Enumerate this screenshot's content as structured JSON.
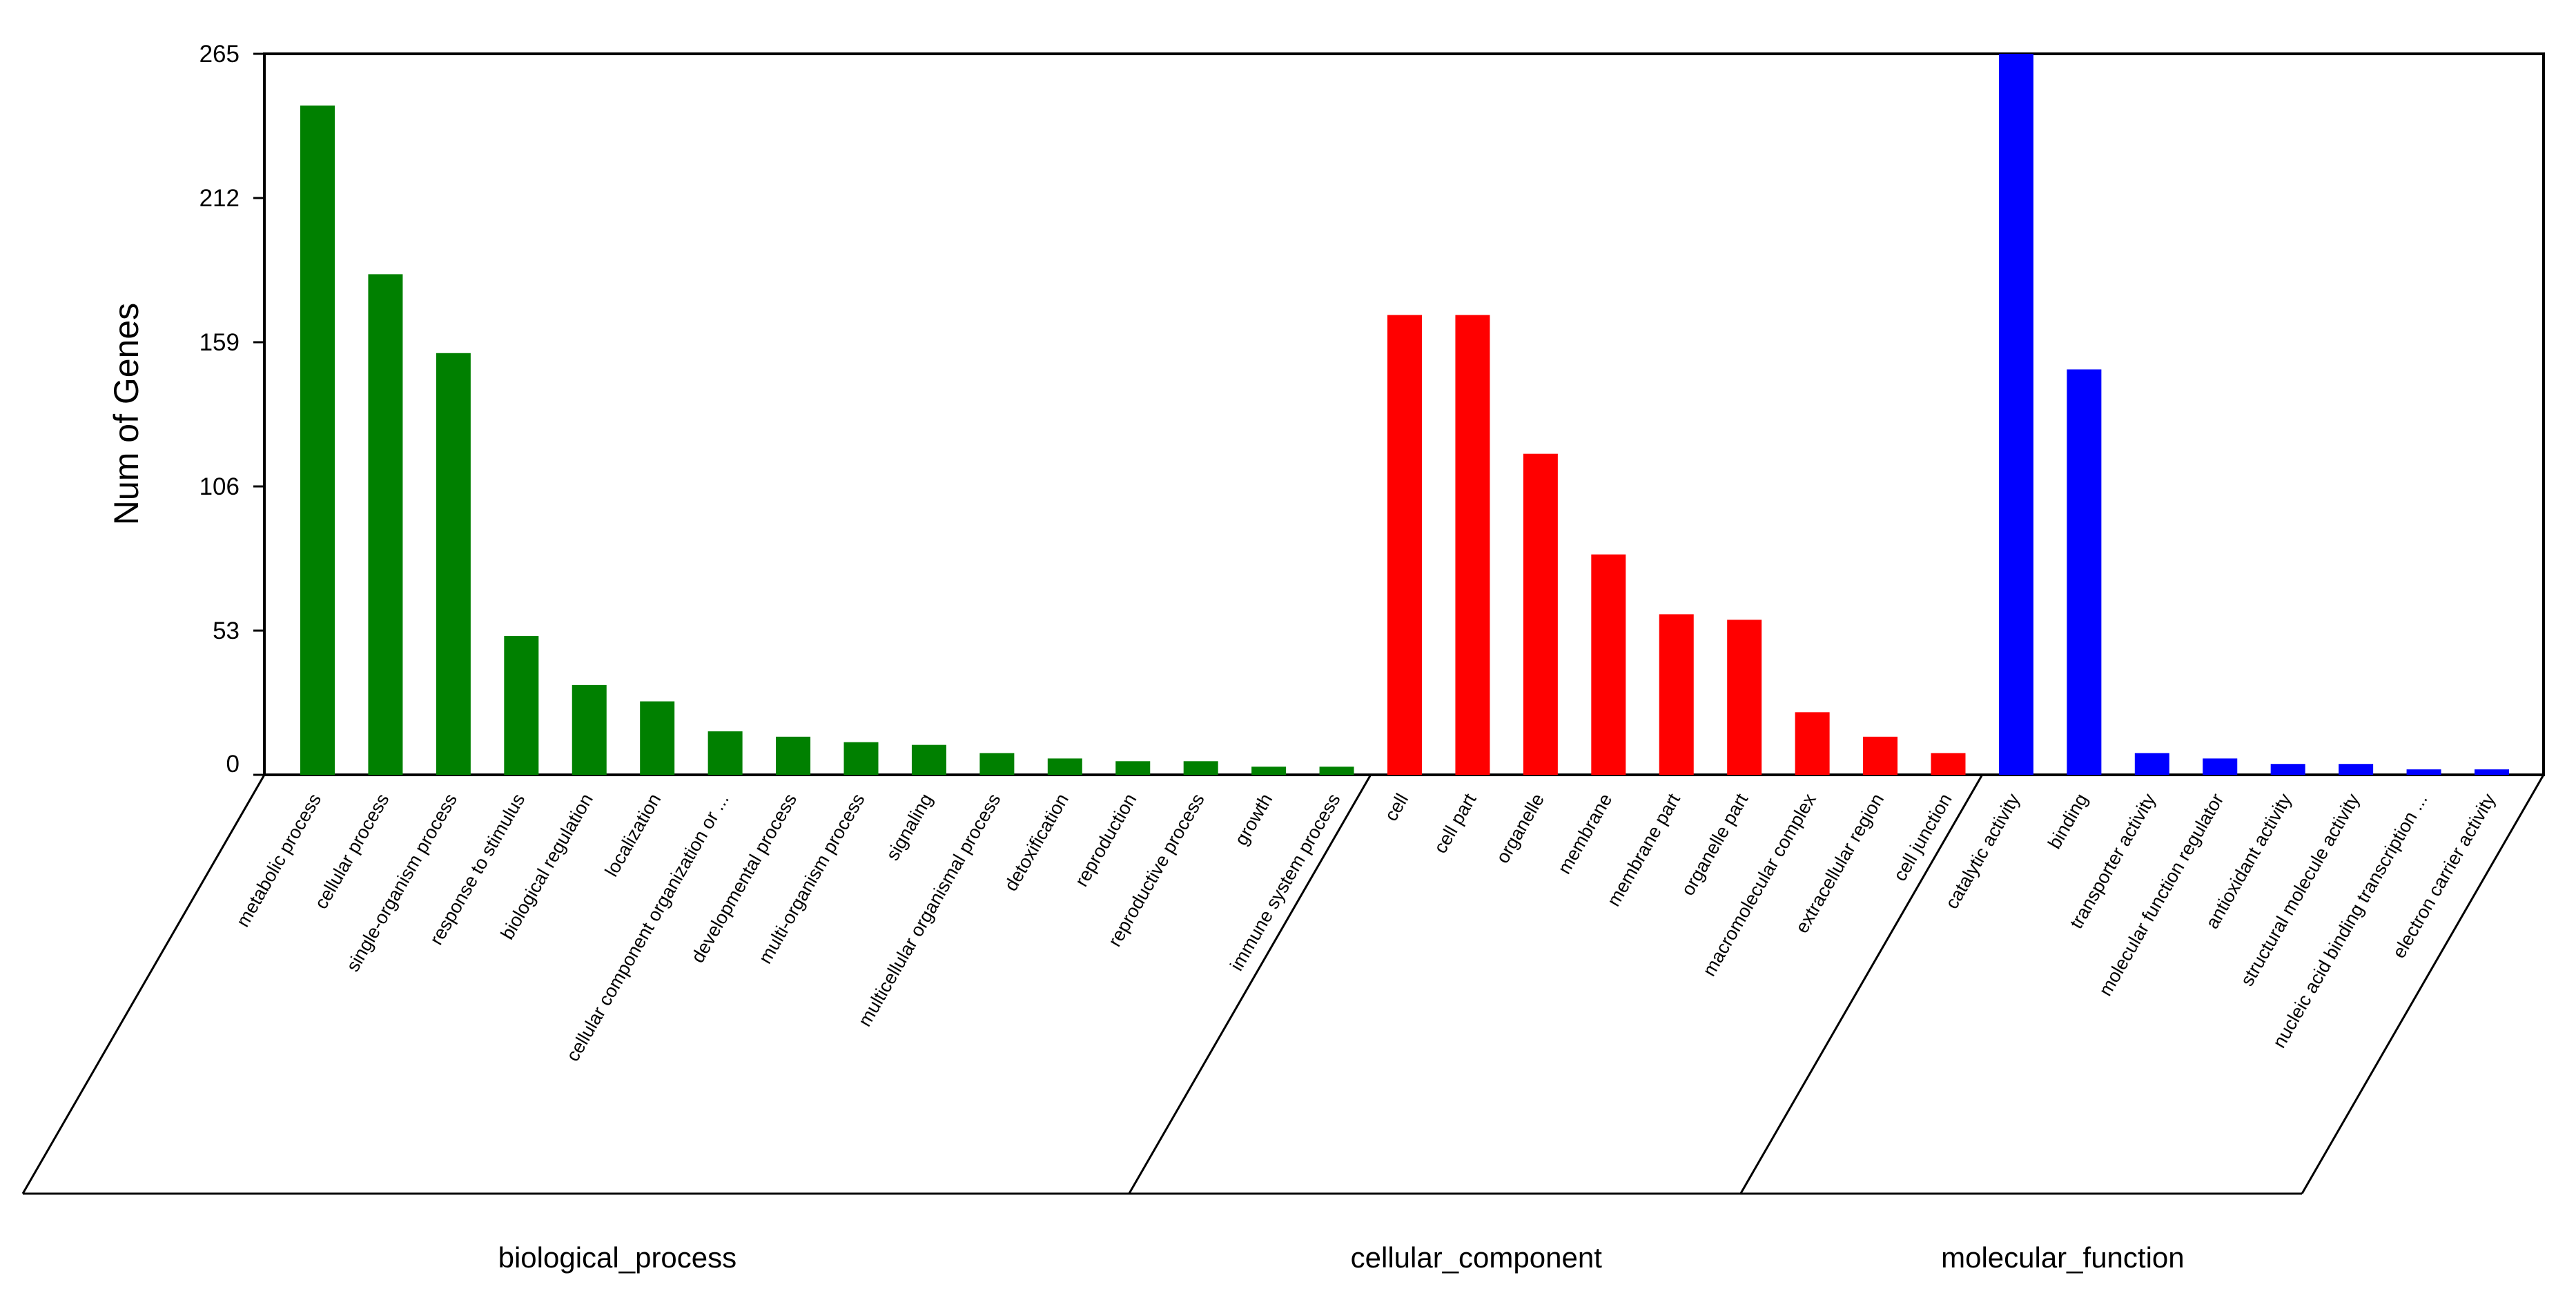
{
  "chart_data": {
    "type": "bar",
    "title": "",
    "ylabel": "Num of Genes",
    "ylim": [
      0,
      265
    ],
    "yticks": [
      0,
      53,
      106,
      159,
      212,
      265
    ],
    "grid": false,
    "legend": "none",
    "groups": [
      {
        "name": "biological_process",
        "color": "#008000",
        "categories": [
          "metabolic process",
          "cellular process",
          "single-organism process",
          "response to stimulus",
          "biological regulation",
          "localization",
          "cellular component organization or ...",
          "developmental process",
          "multi-organism process",
          "signaling",
          "multicellular organismal process",
          "detoxification",
          "reproduction",
          "reproductive process",
          "growth",
          "immune system process"
        ],
        "values": [
          246,
          184,
          155,
          51,
          33,
          27,
          16,
          14,
          12,
          11,
          8,
          6,
          5,
          5,
          3,
          3
        ]
      },
      {
        "name": "cellular_component",
        "color": "#ff0000",
        "categories": [
          "cell",
          "cell part",
          "organelle",
          "membrane",
          "membrane part",
          "organelle part",
          "macromolecular complex",
          "extracellular region",
          "cell junction"
        ],
        "values": [
          169,
          169,
          118,
          81,
          59,
          57,
          23,
          14,
          8
        ]
      },
      {
        "name": "molecular_function",
        "color": "#0000ff",
        "categories": [
          "catalytic activity",
          "binding",
          "transporter activity",
          "molecular function regulator",
          "antioxidant activity",
          "structural molecule activity",
          "nucleic acid binding transcription ...",
          "electron carrier activity"
        ],
        "values": [
          265,
          149,
          8,
          6,
          4,
          4,
          2,
          2
        ]
      }
    ]
  }
}
